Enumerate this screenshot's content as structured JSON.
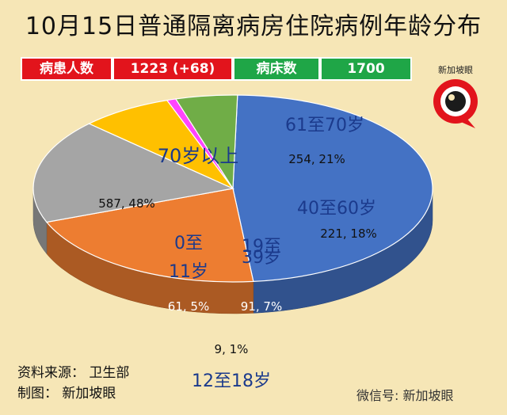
{
  "title": "10月15日普通隔离病房住院病例年龄分布",
  "stats": {
    "patients_label": "病患人数",
    "patients_value": "1223 (+68)",
    "beds_label": "病床数",
    "beds_value": "1700"
  },
  "logo_text": "新加坡眼",
  "footer": {
    "source": "资料来源： 卫生部",
    "made_by": "制图： 新加坡眼"
  },
  "watermark": "微信号: 新加坡眼",
  "chart_data": {
    "type": "pie",
    "title": "10月15日普通隔离病房住院病例年龄分布",
    "slices": [
      {
        "label": "70岁以上",
        "value": 587,
        "percent": 48,
        "value_label": "587, 48%",
        "color": "#4472c4"
      },
      {
        "label": "61至70岁",
        "value": 254,
        "percent": 21,
        "value_label": "254, 21%",
        "color": "#ed7d31"
      },
      {
        "label": "40至60岁",
        "value": 221,
        "percent": 18,
        "value_label": "221, 18%",
        "color": "#a5a5a5"
      },
      {
        "label": "19至39岁",
        "value": 91,
        "percent": 7,
        "value_label": "91, 7%",
        "color": "#ffc000"
      },
      {
        "label": "12至18岁",
        "value": 9,
        "percent": 1,
        "value_label": "9, 1%",
        "color": "#ff44ff"
      },
      {
        "label": "0至11岁",
        "value": 61,
        "percent": 5,
        "value_label": "61, 5%",
        "color": "#70ad47"
      }
    ]
  }
}
